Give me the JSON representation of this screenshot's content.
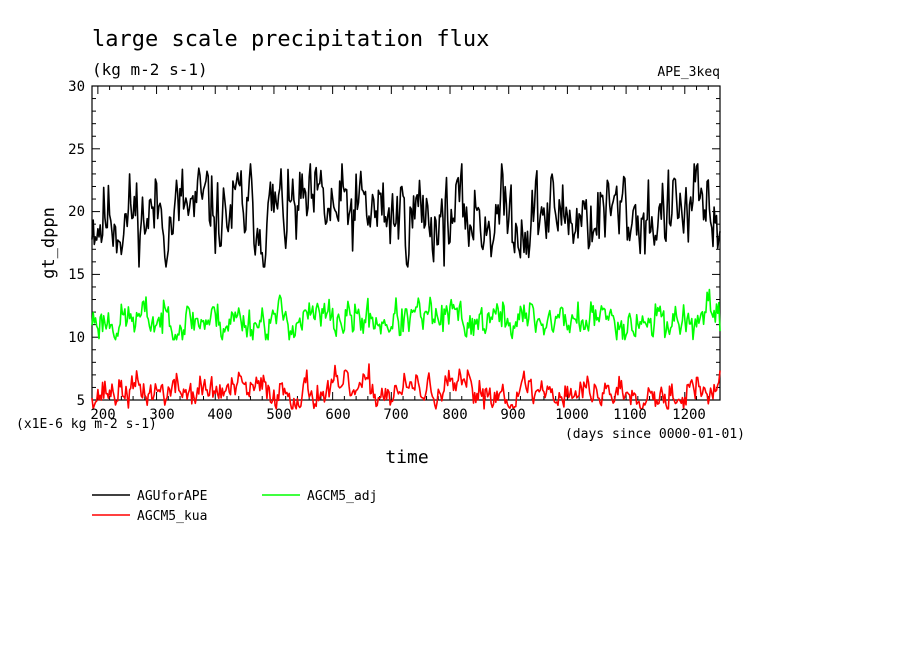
{
  "chart_data": {
    "type": "line",
    "title": "large scale precipitation flux",
    "units": "(kg m-2 s-1)",
    "experiment": "APE_3keq",
    "ylabel": "gt_dppn",
    "xlabel": "time",
    "y_scale_note": "(x1E-6 kg m-2 s-1)",
    "x_unit_note": "(days since 0000-01-01)",
    "xlim": [
      190,
      1260
    ],
    "ylim": [
      5,
      30
    ],
    "x_ticks": [
      "200",
      "300",
      "400",
      "500",
      "600",
      "700",
      "800",
      "900",
      "1000",
      "1100",
      "1200"
    ],
    "y_ticks": [
      "5",
      "10",
      "15",
      "20",
      "25",
      "30"
    ],
    "series": [
      {
        "name": "AGUforAPE",
        "color": "#000000",
        "mean": 19.8,
        "amp": 1.6,
        "min": 15.6,
        "max": 23.8,
        "seed": 11
      },
      {
        "name": "AGCM5_adj",
        "color": "#00ff00",
        "mean": 11.4,
        "amp": 0.7,
        "min": 9.8,
        "max": 13.8,
        "seed": 23
      },
      {
        "name": "AGCM5_kua",
        "color": "#ff0000",
        "mean": 5.7,
        "amp": 0.6,
        "min": 4.3,
        "max": 8.0,
        "seed": 37
      }
    ]
  }
}
